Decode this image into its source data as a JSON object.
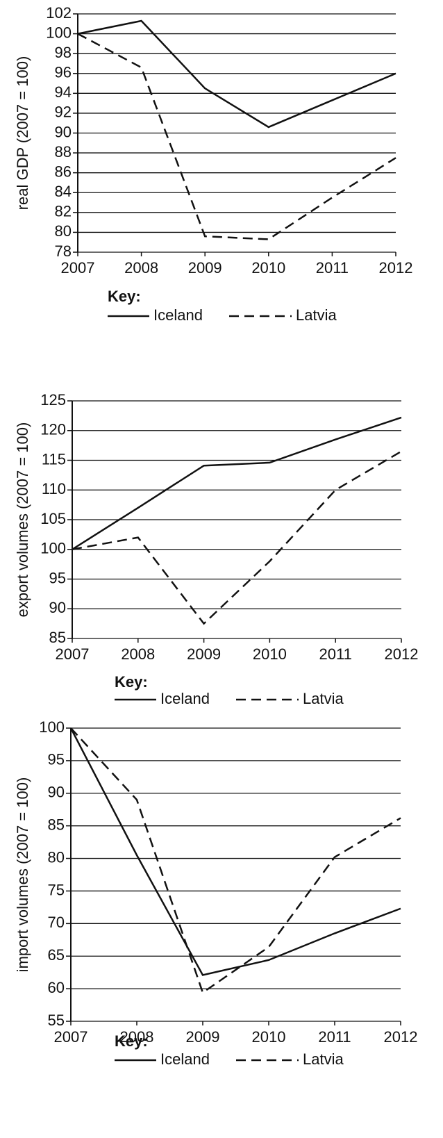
{
  "chart_data": [
    {
      "type": "line",
      "ylabel": "real GDP (2007 = 100)",
      "categories": [
        "2007",
        "2008",
        "2009",
        "2010",
        "2011",
        "2012"
      ],
      "series": [
        {
          "name": "Iceland",
          "color": "#111111",
          "linestyle": "solid",
          "values": [
            100,
            101.3,
            94.5,
            90.6,
            93.3,
            96
          ]
        },
        {
          "name": "Latvia",
          "color": "#111111",
          "linestyle": "dashed",
          "values": [
            100,
            96.6,
            79.6,
            79.3,
            83.5,
            87.5
          ]
        }
      ],
      "ylim": [
        78,
        102
      ],
      "yticks": [
        78,
        80,
        82,
        84,
        86,
        88,
        90,
        92,
        94,
        96,
        98,
        100,
        102
      ],
      "grid": true,
      "legend_title": "Key:"
    },
    {
      "type": "line",
      "ylabel": "export volumes (2007 = 100)",
      "categories": [
        "2007",
        "2008",
        "2009",
        "2010",
        "2011",
        "2012"
      ],
      "series": [
        {
          "name": "Iceland",
          "color": "#111111",
          "linestyle": "solid",
          "values": [
            100,
            107,
            114.1,
            114.6,
            118.5,
            122.2
          ]
        },
        {
          "name": "Latvia",
          "color": "#111111",
          "linestyle": "dashed",
          "values": [
            100,
            102,
            87.5,
            98,
            110,
            116.5
          ]
        }
      ],
      "ylim": [
        85,
        125
      ],
      "yticks": [
        85,
        90,
        95,
        100,
        105,
        110,
        115,
        120,
        125
      ],
      "grid": true,
      "legend_title": "Key:"
    },
    {
      "type": "line",
      "ylabel": "import volumes (2007 = 100)",
      "categories": [
        "2007",
        "2008",
        "2009",
        "2010",
        "2011",
        "2012"
      ],
      "series": [
        {
          "name": "Iceland",
          "color": "#111111",
          "linestyle": "solid",
          "values": [
            100,
            80.5,
            62.1,
            64.4,
            68.5,
            72.3
          ]
        },
        {
          "name": "Latvia",
          "color": "#111111",
          "linestyle": "dashed",
          "values": [
            100,
            89,
            59.4,
            66.4,
            80.2,
            86.2
          ]
        }
      ],
      "ylim": [
        55,
        100
      ],
      "yticks": [
        55,
        60,
        65,
        70,
        75,
        80,
        85,
        90,
        95,
        100
      ],
      "grid": true,
      "legend_title": "Key:"
    }
  ]
}
